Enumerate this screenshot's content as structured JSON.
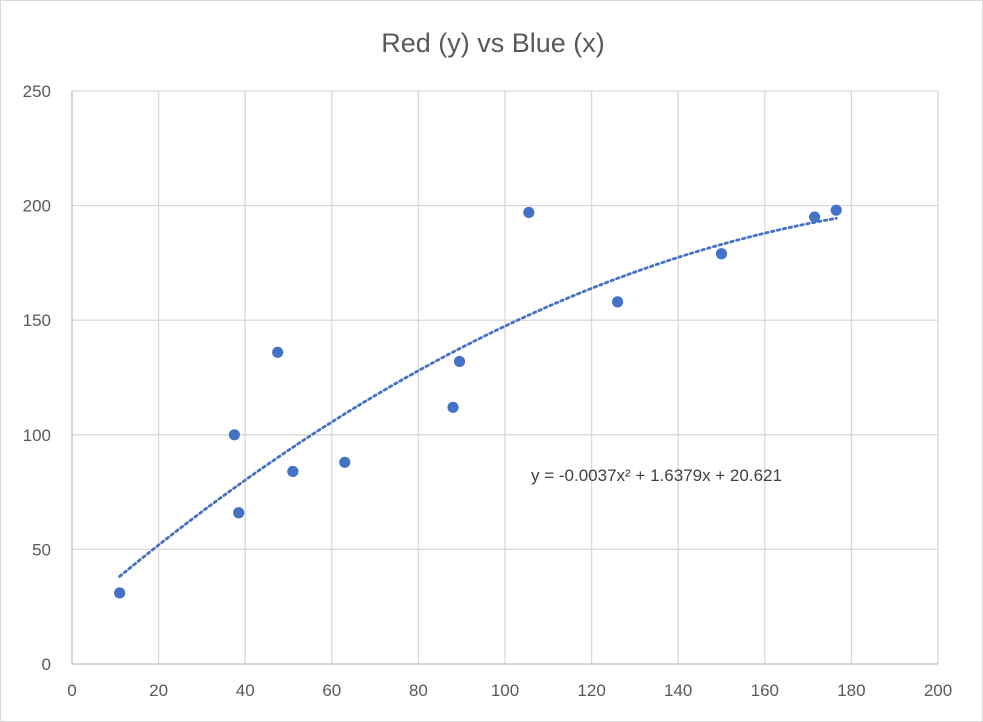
{
  "chart_data": {
    "type": "scatter",
    "title": "Red (y) vs Blue (x)",
    "xlabel": "",
    "ylabel": "",
    "xlim": [
      0,
      200
    ],
    "ylim": [
      0,
      250
    ],
    "x_ticks": [
      0,
      20,
      40,
      60,
      80,
      100,
      120,
      140,
      160,
      180,
      200
    ],
    "y_ticks": [
      0,
      50,
      100,
      150,
      200,
      250
    ],
    "grid": true,
    "legend": "none",
    "series": [
      {
        "points": [
          {
            "x": 11,
            "y": 31
          },
          {
            "x": 37.5,
            "y": 100
          },
          {
            "x": 38.5,
            "y": 66
          },
          {
            "x": 47.5,
            "y": 136
          },
          {
            "x": 51,
            "y": 84
          },
          {
            "x": 63,
            "y": 88
          },
          {
            "x": 88,
            "y": 112
          },
          {
            "x": 89.5,
            "y": 132
          },
          {
            "x": 105.5,
            "y": 197
          },
          {
            "x": 126,
            "y": 158
          },
          {
            "x": 150,
            "y": 179
          },
          {
            "x": 171.5,
            "y": 195
          },
          {
            "x": 176.5,
            "y": 198
          }
        ],
        "color": "#4472c4"
      }
    ],
    "trendline": {
      "type": "polynomial",
      "order": 2,
      "coefficients": {
        "a": -0.0037,
        "b": 1.6379,
        "c": 20.621
      },
      "x_range": [
        11,
        176.5
      ],
      "style": "dotted",
      "color": "#4472c4",
      "equation": "y = -0.0037x² + 1.6379x + 20.621"
    }
  }
}
